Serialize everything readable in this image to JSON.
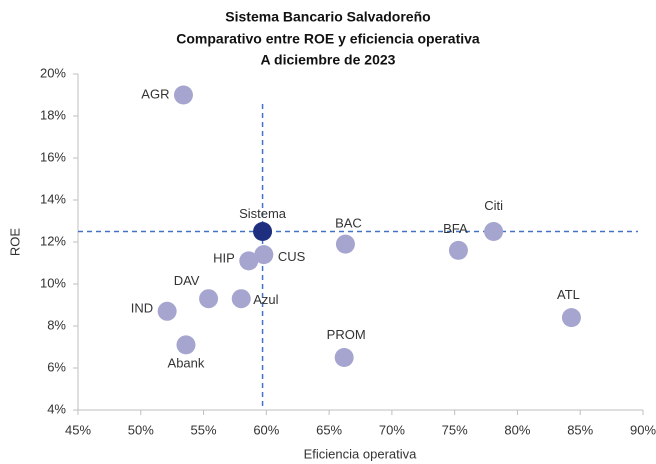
{
  "chart_data": {
    "type": "scatter",
    "title": [
      "Sistema Bancario Salvadoreño",
      "Comparativo entre ROE y eficiencia operativa",
      "A diciembre de 2023"
    ],
    "x_label": "Eficiencia operativa",
    "y_label": "ROE",
    "labels": [
      "AGR",
      "Sistema",
      "CUS",
      "HIP",
      "BAC",
      "BFA",
      "Citi",
      "ATL",
      "DAV",
      "Azul",
      "IND",
      "Abank",
      "PROM"
    ],
    "x": [
      53.4,
      59.7,
      59.8,
      58.6,
      66.3,
      75.3,
      78.1,
      84.3,
      55.4,
      58.0,
      52.1,
      53.6,
      66.2
    ],
    "values": [
      19.0,
      12.5,
      11.4,
      11.1,
      11.9,
      11.6,
      12.5,
      8.4,
      9.3,
      9.3,
      8.7,
      7.1,
      6.5
    ],
    "colors": [
      "#a5a5cf",
      "#1f2f7f",
      "#a5a5cf",
      "#a5a5cf",
      "#a5a5cf",
      "#a5a5cf",
      "#a5a5cf",
      "#a5a5cf",
      "#a5a5cf",
      "#a5a5cf",
      "#a5a5cf",
      "#a5a5cf",
      "#a5a5cf"
    ],
    "reference_line_color": "#4472c4",
    "xlim": [
      45,
      90
    ],
    "xticks": [
      {
        "value": 45,
        "label": "45%"
      },
      {
        "value": 50,
        "label": "50%"
      },
      {
        "value": 55,
        "label": "55%"
      },
      {
        "value": 60,
        "label": "60%"
      },
      {
        "value": 65,
        "label": "65%"
      },
      {
        "value": 70,
        "label": "70%"
      },
      {
        "value": 75,
        "label": "75%"
      },
      {
        "value": 80,
        "label": "80%"
      },
      {
        "value": 85,
        "label": "85%"
      },
      {
        "value": 90,
        "label": "90%"
      }
    ],
    "ylim": [
      4,
      20
    ],
    "yticks": [
      {
        "value": 4,
        "label": "4%"
      },
      {
        "value": 6,
        "label": "6%"
      },
      {
        "value": 8,
        "label": "8%"
      },
      {
        "value": 10,
        "label": "10%"
      },
      {
        "value": 12,
        "label": "12%"
      },
      {
        "value": 14,
        "label": "14%"
      },
      {
        "value": 16,
        "label": "16%"
      },
      {
        "value": 18,
        "label": "18%"
      },
      {
        "value": 20,
        "label": "20%"
      }
    ],
    "grid": false
  }
}
